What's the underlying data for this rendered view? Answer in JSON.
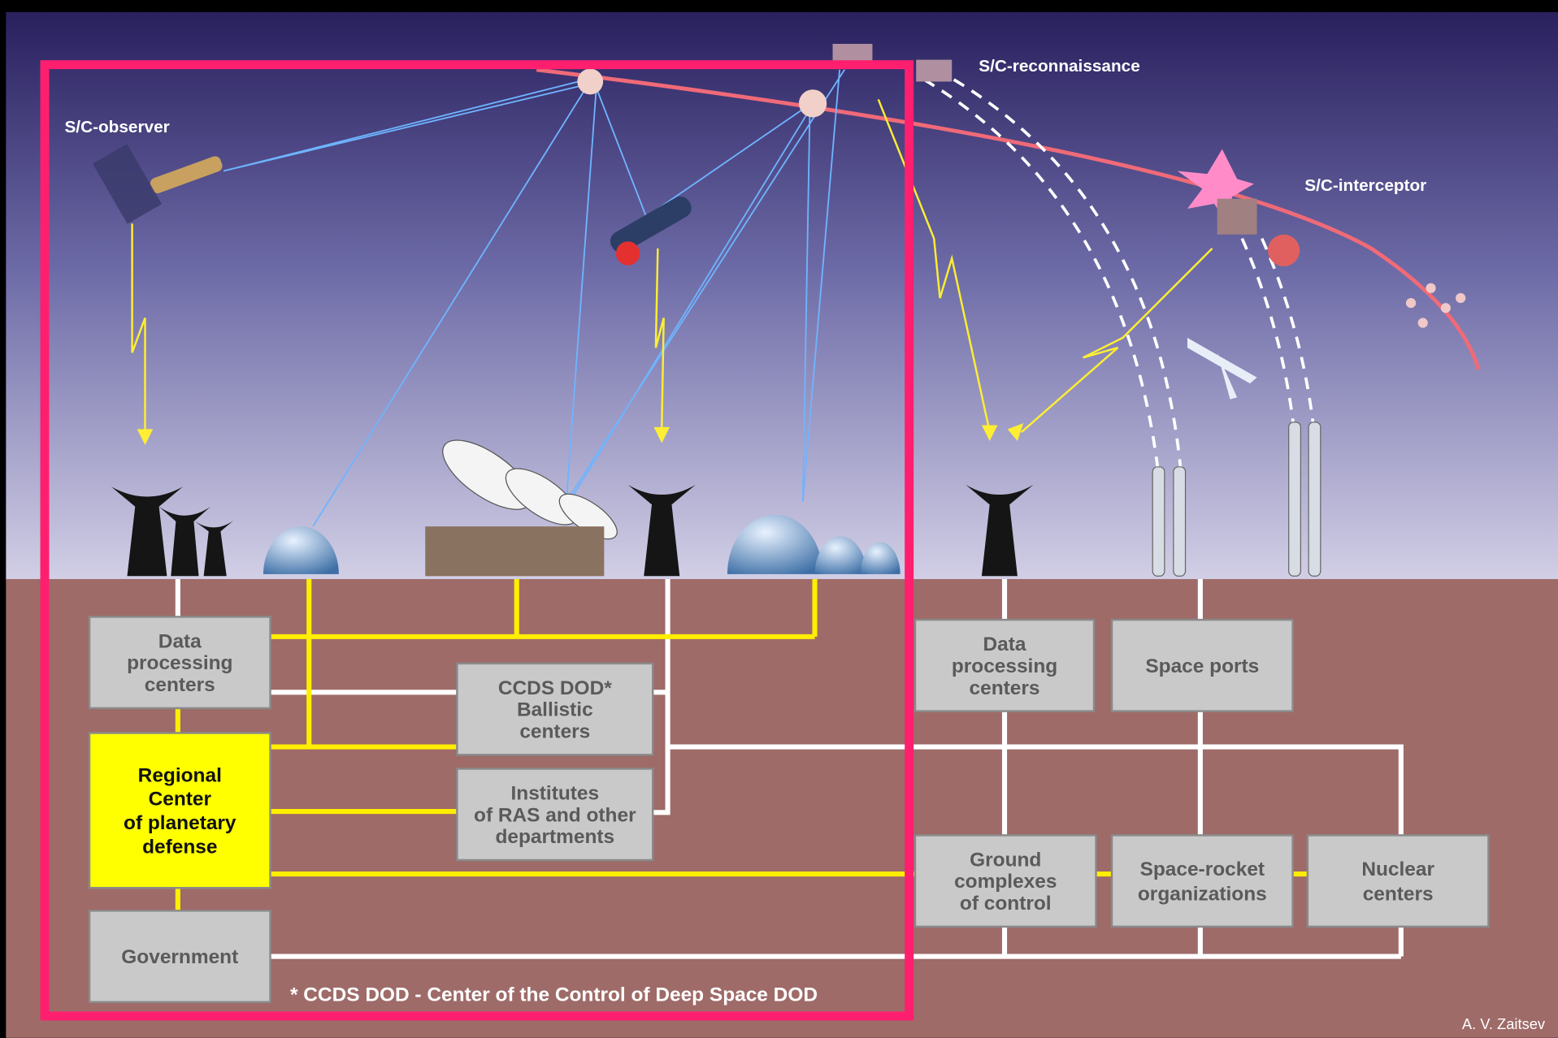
{
  "labels": {
    "observer": "S/C-observer",
    "reconnaissance": "S/C-reconnaissance",
    "interceptor": "S/C-interceptor"
  },
  "nodes": [
    {
      "lines": [
        "Data",
        "processing",
        "centers"
      ]
    },
    {
      "lines": [
        "Regional",
        "Center",
        "of planetary",
        "defense"
      ]
    },
    {
      "lines": [
        "Government"
      ]
    },
    {
      "lines": [
        "CCDS DOD*",
        "Ballistic",
        "centers"
      ]
    },
    {
      "lines": [
        "Institutes",
        "of RAS and other",
        "departments"
      ]
    },
    {
      "lines": [
        "Data",
        "processing",
        "centers"
      ]
    },
    {
      "lines": [
        "Space ports"
      ]
    },
    {
      "lines": [
        "Ground",
        "complexes",
        "of control"
      ]
    },
    {
      "lines": [
        "Space-rocket",
        "organizations"
      ]
    },
    {
      "lines": [
        "Nuclear",
        "centers"
      ]
    }
  ],
  "footnote": "* CCDS DOD - Center of the Control of Deep Space DOD",
  "author": "A. V. Zaitsev"
}
